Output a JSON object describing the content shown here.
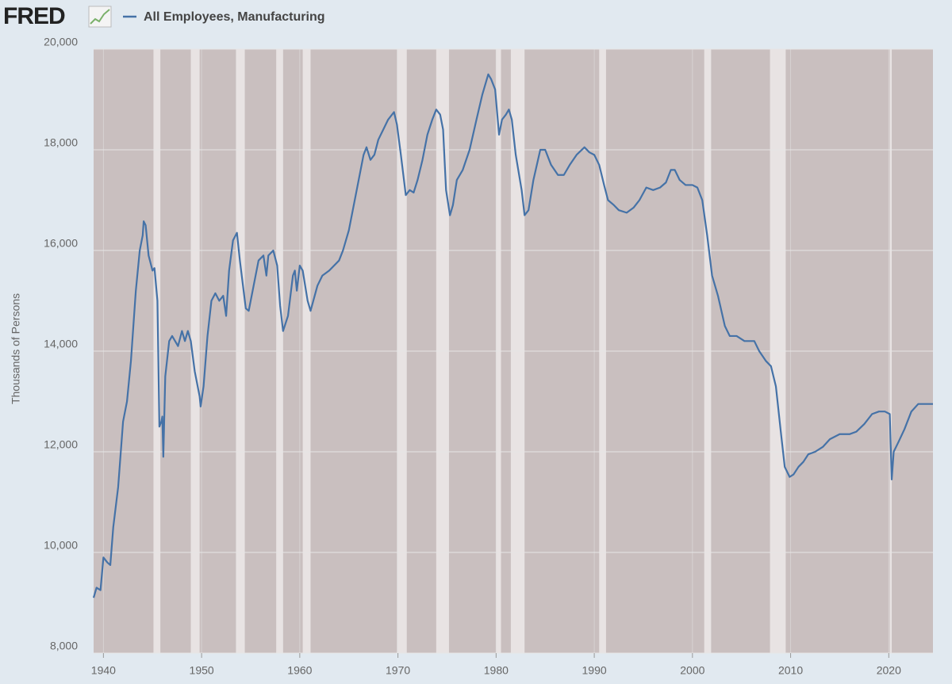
{
  "logo": "FRED",
  "chart_data": {
    "type": "line",
    "y_label": "Thousands of Persons",
    "xlim": [
      1939,
      2024.5
    ],
    "ylim": [
      8000,
      20000
    ],
    "xticks": [
      1940,
      1950,
      1960,
      1970,
      1980,
      1990,
      2000,
      2010,
      2020
    ],
    "yticks": [
      {
        "value": 8000,
        "label": "8,000"
      },
      {
        "value": 10000,
        "label": "10,000"
      },
      {
        "value": 12000,
        "label": "12,000"
      },
      {
        "value": 14000,
        "label": "14,000"
      },
      {
        "value": 16000,
        "label": "16,000"
      },
      {
        "value": 18000,
        "label": "18,000"
      },
      {
        "value": 20000,
        "label": "20,000"
      }
    ],
    "grid": true,
    "plot_color": "#c9bfbf",
    "recession_color": "#e8e3e3",
    "recessions": [
      [
        1945.1,
        1945.8
      ],
      [
        1948.9,
        1949.8
      ],
      [
        1953.5,
        1954.4
      ],
      [
        1957.6,
        1958.3
      ],
      [
        1960.3,
        1961.1
      ],
      [
        1969.9,
        1970.9
      ],
      [
        1973.9,
        1975.2
      ],
      [
        1980.0,
        1980.5
      ],
      [
        1981.5,
        1982.9
      ],
      [
        1990.5,
        1991.2
      ],
      [
        2001.2,
        2001.9
      ],
      [
        2007.9,
        2009.5
      ],
      [
        2020.1,
        2020.3
      ]
    ],
    "x": [
      1939.0,
      1939.3,
      1939.7,
      1940.0,
      1940.4,
      1940.7,
      1941.0,
      1941.5,
      1942.0,
      1942.4,
      1942.8,
      1943.3,
      1943.7,
      1944.0,
      1944.1,
      1944.3,
      1944.6,
      1945.0,
      1945.2,
      1945.5,
      1945.7,
      1945.9,
      1946.0,
      1946.1,
      1946.3,
      1946.7,
      1947.0,
      1947.6,
      1948.0,
      1948.3,
      1948.6,
      1948.9,
      1949.3,
      1949.8,
      1949.9,
      1950.2,
      1950.6,
      1951.0,
      1951.4,
      1951.8,
      1952.2,
      1952.5,
      1952.8,
      1953.2,
      1953.6,
      1953.9,
      1954.5,
      1954.8,
      1955.3,
      1955.8,
      1956.3,
      1956.6,
      1956.8,
      1957.3,
      1957.7,
      1958.0,
      1958.3,
      1958.8,
      1959.3,
      1959.5,
      1959.7,
      1960.0,
      1960.3,
      1960.8,
      1961.1,
      1961.8,
      1962.3,
      1963.0,
      1964.0,
      1964.4,
      1965.0,
      1966.0,
      1966.5,
      1966.8,
      1967.2,
      1967.6,
      1968.0,
      1968.5,
      1969.0,
      1969.6,
      1969.9,
      1970.3,
      1970.8,
      1971.2,
      1971.6,
      1972.0,
      1972.5,
      1973.0,
      1973.5,
      1973.9,
      1974.3,
      1974.6,
      1974.9,
      1975.3,
      1975.6,
      1976.0,
      1976.6,
      1977.3,
      1978.0,
      1978.6,
      1979.2,
      1979.5,
      1979.9,
      1980.3,
      1980.6,
      1981.0,
      1981.3,
      1981.6,
      1982.0,
      1982.6,
      1982.9,
      1983.3,
      1983.8,
      1984.5,
      1985.0,
      1985.6,
      1986.3,
      1986.9,
      1987.5,
      1988.2,
      1989.0,
      1989.5,
      1990.0,
      1990.5,
      1991.0,
      1991.4,
      1992.0,
      1992.5,
      1993.3,
      1994.0,
      1994.6,
      1995.3,
      1996.0,
      1996.7,
      1997.3,
      1997.8,
      1998.2,
      1998.7,
      1999.3,
      2000.0,
      2000.5,
      2001.0,
      2001.5,
      2002.0,
      2002.6,
      2003.3,
      2003.8,
      2004.5,
      2005.3,
      2006.3,
      2006.8,
      2007.5,
      2008.0,
      2008.5,
      2009.0,
      2009.4,
      2009.9,
      2010.3,
      2010.8,
      2011.3,
      2011.8,
      2012.5,
      2013.3,
      2014.0,
      2015.0,
      2016.0,
      2016.7,
      2017.5,
      2018.3,
      2019.0,
      2019.6,
      2020.1,
      2020.3,
      2020.5,
      2021.0,
      2021.6,
      2022.3,
      2023.0,
      2024.0,
      2024.5
    ],
    "series": [
      {
        "name": "All Employees, Manufacturing",
        "color": "#4572a7",
        "values": [
          9100,
          9300,
          9250,
          9900,
          9800,
          9750,
          10500,
          11300,
          12600,
          13000,
          13800,
          15200,
          16000,
          16300,
          16580,
          16500,
          15900,
          15600,
          15650,
          15000,
          12500,
          12600,
          12700,
          11900,
          13500,
          14200,
          14300,
          14100,
          14400,
          14200,
          14400,
          14200,
          13600,
          13100,
          12900,
          13300,
          14300,
          15000,
          15150,
          15000,
          15100,
          14700,
          15600,
          16200,
          16350,
          15800,
          14850,
          14800,
          15300,
          15800,
          15900,
          15500,
          15900,
          16000,
          15700,
          14900,
          14400,
          14700,
          15500,
          15600,
          15200,
          15700,
          15600,
          15000,
          14800,
          15300,
          15500,
          15600,
          15800,
          16000,
          16400,
          17400,
          17900,
          18050,
          17800,
          17900,
          18200,
          18400,
          18600,
          18750,
          18500,
          17900,
          17100,
          17200,
          17150,
          17400,
          17800,
          18300,
          18600,
          18800,
          18700,
          18400,
          17200,
          16700,
          16900,
          17400,
          17600,
          18000,
          18600,
          19100,
          19500,
          19400,
          19200,
          18300,
          18600,
          18700,
          18800,
          18600,
          17900,
          17200,
          16700,
          16800,
          17400,
          18000,
          18000,
          17700,
          17500,
          17500,
          17700,
          17900,
          18050,
          17950,
          17900,
          17700,
          17300,
          17000,
          16900,
          16800,
          16750,
          16850,
          17000,
          17250,
          17200,
          17250,
          17350,
          17600,
          17600,
          17400,
          17300,
          17300,
          17250,
          17000,
          16300,
          15500,
          15100,
          14500,
          14300,
          14300,
          14200,
          14200,
          14000,
          13800,
          13700,
          13300,
          12400,
          11700,
          11500,
          11550,
          11700,
          11800,
          11950,
          12000,
          12100,
          12250,
          12350,
          12350,
          12400,
          12550,
          12750,
          12800,
          12800,
          12750,
          11450,
          12000,
          12200,
          12450,
          12800,
          12950,
          12950,
          12950
        ]
      }
    ]
  }
}
